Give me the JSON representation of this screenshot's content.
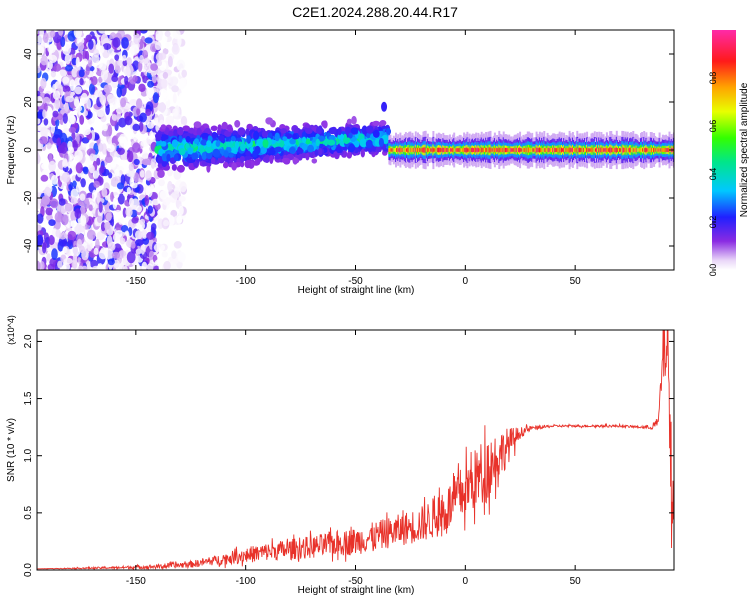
{
  "title": "C2E1.2024.288.20.44.R17",
  "chart_data": [
    {
      "type": "heatmap",
      "xlabel": "Height of straight line (km)",
      "ylabel": "Frequency (Hz)",
      "xlim": [
        -195,
        95
      ],
      "ylim": [
        -50,
        50
      ],
      "xticks": [
        -150,
        -100,
        -50,
        0,
        50
      ],
      "yticks": [
        -40,
        -20,
        0,
        20,
        40
      ],
      "colorbar": {
        "label": "Normalized spectral amplitude",
        "range": [
          0.0,
          1.0
        ],
        "ticks": [
          "0.0",
          "0.2",
          "0.4",
          "0.6",
          "0.8"
        ],
        "colormap": "rainbow (white → violet → blue → cyan → green → yellow → red → magenta)"
      },
      "regions": [
        {
          "x": [
            -195,
            -140
          ],
          "freq_spread_hz": [
            -50,
            50
          ],
          "amplitude": [
            0.0,
            0.25
          ]
        },
        {
          "x": [
            -140,
            -128
          ],
          "freq_spread_hz": [
            -50,
            50
          ],
          "amplitude": [
            0.0,
            0.05
          ]
        },
        {
          "x": [
            -140,
            -35
          ],
          "freq_center_hz": [
            0,
            5
          ],
          "freq_halfwidth_hz": [
            8,
            12
          ],
          "amplitude": [
            0.1,
            0.5
          ]
        },
        {
          "x": [
            -35,
            95
          ],
          "freq_center_hz": 0,
          "freq_halfwidth_hz": [
            3,
            5
          ],
          "amplitude": [
            0.4,
            0.95
          ]
        }
      ],
      "features": [
        {
          "x": -37,
          "freq_hz": 18,
          "amplitude": 0.2
        }
      ]
    },
    {
      "type": "line",
      "xlabel": "Height of straight line (km)",
      "ylabel": "SNR (10 * v/v)",
      "multiplier": "(x10^4)",
      "xlim": [
        -195,
        95
      ],
      "ylim": [
        0,
        2.1
      ],
      "xticks": [
        -150,
        -100,
        -50,
        0,
        50
      ],
      "yticks": [
        "0.0",
        "0.5",
        "1.0",
        "1.5",
        "2.0"
      ],
      "series": [
        {
          "color": "#e8322a",
          "x": [
            -195,
            -160,
            -140,
            -125,
            -115,
            -100,
            -90,
            -80,
            -70,
            -60,
            -50,
            -40,
            -30,
            -20,
            -10,
            0,
            10,
            20,
            25,
            30,
            40,
            50,
            60,
            70,
            80,
            85,
            88,
            90,
            92,
            94
          ],
          "y": [
            0.01,
            0.02,
            0.03,
            0.05,
            0.08,
            0.13,
            0.16,
            0.18,
            0.2,
            0.23,
            0.25,
            0.3,
            0.35,
            0.4,
            0.5,
            0.7,
            0.9,
            1.1,
            1.2,
            1.24,
            1.26,
            1.26,
            1.26,
            1.26,
            1.25,
            1.25,
            1.3,
            1.9,
            2.05,
            0.6
          ],
          "noise_amplitude": [
            0,
            0.01,
            0.02,
            0.03,
            0.04,
            0.07,
            0.08,
            0.09,
            0.1,
            0.11,
            0.12,
            0.13,
            0.14,
            0.16,
            0.2,
            0.25,
            0.3,
            0.15,
            0.05,
            0.02,
            0.01,
            0.01,
            0.01,
            0.01,
            0.01,
            0.02,
            0.05,
            0.3,
            0.4,
            0.5
          ]
        }
      ]
    }
  ]
}
